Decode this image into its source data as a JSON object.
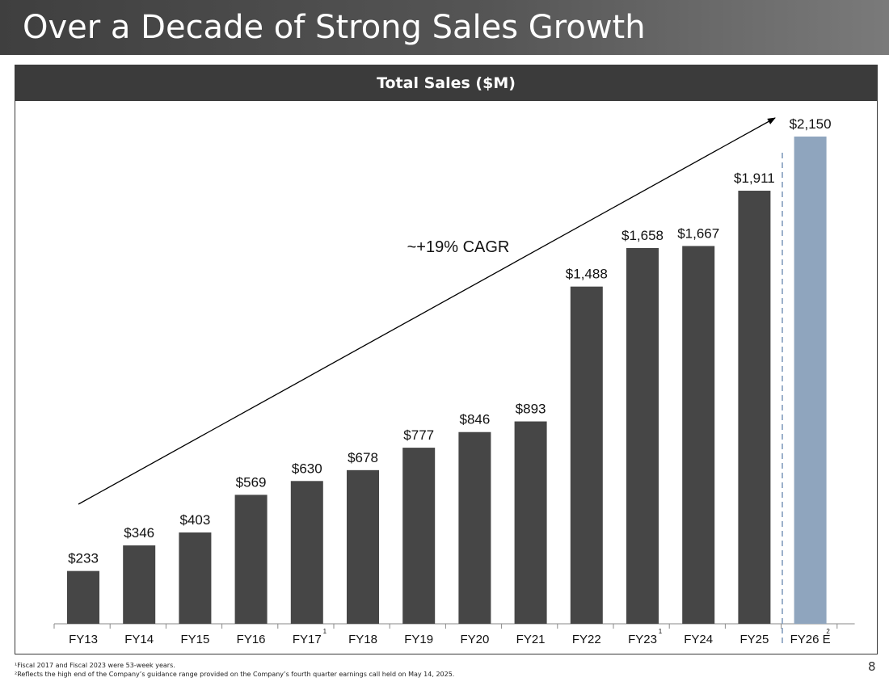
{
  "page": {
    "title": "Over a Decade of Strong Sales Growth",
    "page_number": "8",
    "footnotes": [
      "¹Fiscal 2017 and Fiscal 2023 were 53-week years.",
      "²Reflects the high end of the Company’s guidance range provided on the Company’s fourth quarter earnings call held on May 14, 2025."
    ]
  },
  "colors": {
    "bar_actual": "#464646",
    "bar_estimate": "#8fa5be",
    "title_bar": "#4a4a4a",
    "divider": "#7a95b8"
  },
  "chart_data": {
    "type": "bar",
    "title": "Total Sales ($M)",
    "xlabel": "",
    "ylabel": "",
    "ylim": [
      0,
      2150
    ],
    "categories": [
      "FY13",
      "FY14",
      "FY15",
      "FY16",
      "FY17",
      "FY18",
      "FY19",
      "FY20",
      "FY21",
      "FY22",
      "FY23",
      "FY24",
      "FY25",
      "FY26 E"
    ],
    "superscripts": [
      "",
      "",
      "",
      "",
      "1",
      "",
      "",
      "",
      "",
      "",
      "1",
      "",
      "",
      "2"
    ],
    "values": [
      233,
      346,
      403,
      569,
      630,
      678,
      777,
      846,
      893,
      1488,
      1658,
      1667,
      1911,
      2150
    ],
    "data_labels": [
      "$233",
      "$346",
      "$403",
      "$569",
      "$630",
      "$678",
      "$777",
      "$846",
      "$893",
      "$1,488",
      "$1,658",
      "$1,667",
      "$1,911",
      "$2,150"
    ],
    "estimate_flags": [
      false,
      false,
      false,
      false,
      false,
      false,
      false,
      false,
      false,
      false,
      false,
      false,
      false,
      true
    ],
    "annotation": "~+19% CAGR",
    "grid": false
  }
}
